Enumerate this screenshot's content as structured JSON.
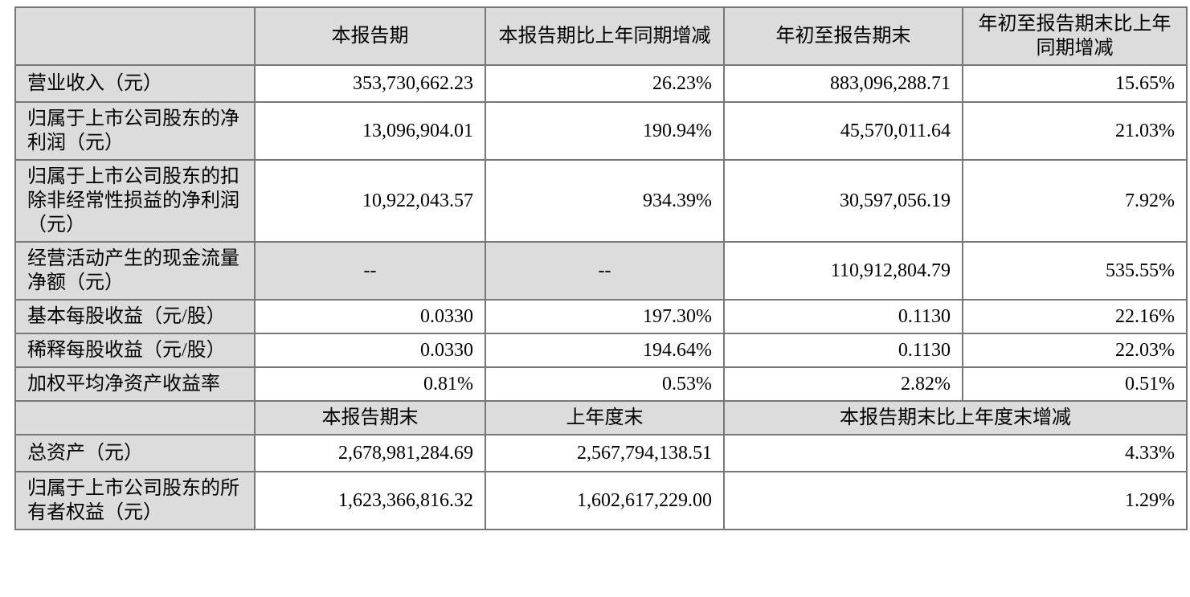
{
  "table": {
    "name": "季度主要会计数据摘要",
    "colors": {
      "cell_gray": "#dcdcdc",
      "border": "#777777",
      "text": "#000000",
      "background": "#ffffff"
    },
    "header_row_1": {
      "corner": "",
      "col2": "本报告期",
      "col3": "本报告期比上年同期增减",
      "col4": "年初至报告期末",
      "col5": "年初至报告期末比上年同期增减"
    },
    "rows_section1": [
      {
        "label": "营业收入（元）",
        "values": [
          "353,730,662.23",
          "26.23%",
          "883,096,288.71",
          "15.65%"
        ]
      },
      {
        "label": "归属于上市公司股东的净利润（元）",
        "values": [
          "13,096,904.01",
          "190.94%",
          "45,570,011.64",
          "21.03%"
        ]
      },
      {
        "label": "归属于上市公司股东的扣除非经常性损益的净利润（元）",
        "values": [
          "10,922,043.57",
          "934.39%",
          "30,597,056.19",
          "7.92%"
        ]
      },
      {
        "label": "经营活动产生的现金流量净额（元）",
        "values": [
          "--",
          "--",
          "110,912,804.79",
          "535.55%"
        ]
      },
      {
        "label": "基本每股收益（元/股）",
        "values": [
          "0.0330",
          "197.30%",
          "0.1130",
          "22.16%"
        ]
      },
      {
        "label": "稀释每股收益（元/股）",
        "values": [
          "0.0330",
          "194.64%",
          "0.1130",
          "22.03%"
        ]
      },
      {
        "label": "加权平均净资产收益率",
        "values": [
          "0.81%",
          "0.53%",
          "2.82%",
          "0.51%"
        ]
      }
    ],
    "header_row_2": {
      "corner": "",
      "col2": "本报告期末",
      "col3": "上年度末",
      "col45": "本报告期末比上年度末增减"
    },
    "rows_section2": [
      {
        "label": "总资产（元）",
        "values": [
          "2,678,981,284.69",
          "2,567,794,138.51",
          "4.33%"
        ]
      },
      {
        "label": "归属于上市公司股东的所有者权益（元）",
        "values": [
          "1,623,366,816.32",
          "1,602,617,229.00",
          "1.29%"
        ]
      }
    ]
  }
}
